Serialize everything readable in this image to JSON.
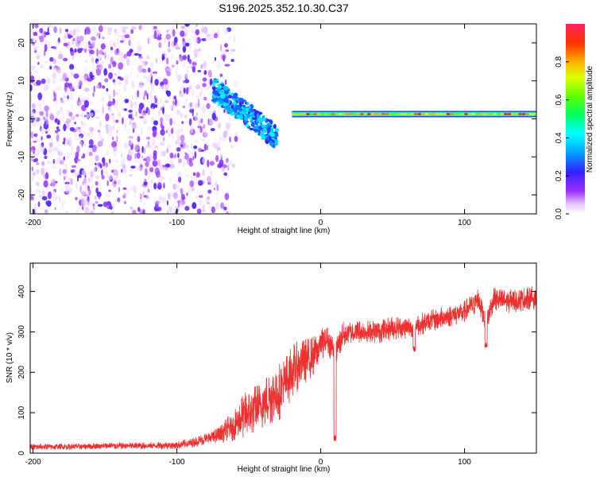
{
  "title": "S196.2025.352.10.30.C37",
  "chart_data": [
    {
      "type": "heatmap",
      "name": "spectrogram",
      "xlabel": "Height of straight line (km)",
      "ylabel": "Frequency (Hz)",
      "xlim": [
        -202,
        150
      ],
      "ylim": [
        -25,
        25
      ],
      "xticks": [
        -200,
        -100,
        0,
        100
      ],
      "yticks": [
        -20,
        -10,
        0,
        10,
        20
      ],
      "colorbar": {
        "label": "Normalized spectral amplitude",
        "range": [
          0,
          1
        ],
        "ticks": [
          0.0,
          0.2,
          0.4,
          0.6,
          0.8
        ]
      },
      "features": [
        {
          "desc": "scattered low-amplitude noise",
          "x": [
            -202,
            -65
          ],
          "freq": [
            -25,
            25
          ],
          "amplitude": [
            0.02,
            0.2
          ]
        },
        {
          "desc": "descending signal branch",
          "x": [
            -75,
            -30
          ],
          "freq": [
            8,
            -5
          ],
          "amplitude": [
            0.2,
            0.45
          ]
        },
        {
          "desc": "steady carrier near 1 Hz",
          "x": [
            -20,
            150
          ],
          "freq": [
            1,
            1.5
          ],
          "amplitude": [
            0.6,
            0.95
          ]
        }
      ]
    },
    {
      "type": "line",
      "name": "snr",
      "xlabel": "Height of straight line (km)",
      "ylabel": "SNR (10 * v/v)",
      "xlim": [
        -202,
        150
      ],
      "ylim": [
        0,
        470
      ],
      "xticks": [
        -200,
        -100,
        0,
        100
      ],
      "yticks": [
        0,
        100,
        200,
        300,
        400
      ],
      "color": "#ef3030",
      "series": [
        {
          "name": "SNR",
          "x": [
            -202,
            -180,
            -160,
            -140,
            -120,
            -100,
            -90,
            -80,
            -70,
            -65,
            -60,
            -55,
            -50,
            -45,
            -40,
            -35,
            -30,
            -25,
            -20,
            -15,
            -10,
            -5,
            0,
            5,
            10,
            15,
            20,
            30,
            40,
            50,
            60,
            70,
            80,
            90,
            100,
            110,
            115,
            120,
            130,
            140,
            150
          ],
          "y": [
            15,
            16,
            17,
            18,
            18,
            20,
            25,
            35,
            45,
            60,
            70,
            90,
            100,
            110,
            120,
            140,
            150,
            170,
            200,
            220,
            230,
            240,
            270,
            280,
            250,
            290,
            300,
            300,
            300,
            310,
            310,
            320,
            330,
            340,
            350,
            380,
            320,
            380,
            375,
            380,
            385
          ],
          "spread": [
            8,
            8,
            8,
            9,
            9,
            10,
            12,
            15,
            22,
            30,
            40,
            55,
            60,
            60,
            65,
            70,
            75,
            70,
            70,
            60,
            55,
            50,
            40,
            35,
            40,
            35,
            30,
            30,
            30,
            30,
            28,
            28,
            28,
            28,
            28,
            35,
            35,
            30,
            30,
            30,
            30
          ]
        }
      ],
      "dips": [
        {
          "x": 10,
          "y": 30
        },
        {
          "x": 115,
          "y": 260
        },
        {
          "x": 65,
          "y": 250
        }
      ]
    }
  ]
}
